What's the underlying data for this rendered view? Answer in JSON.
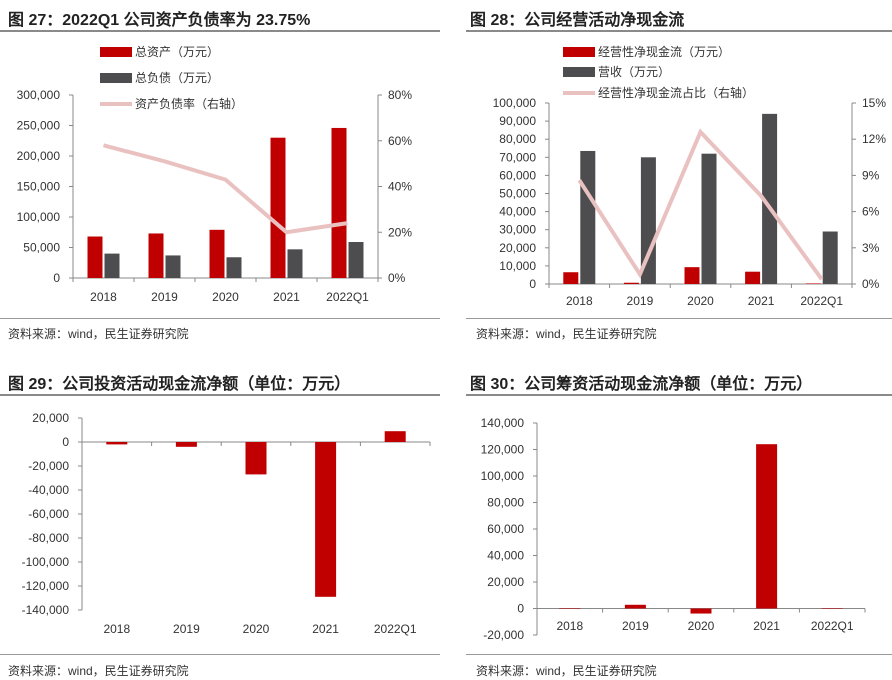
{
  "panels": [
    {
      "title": "图 27：2022Q1 公司资产负债率为 23.75%",
      "source": "资料来源：wind，民生证券研究院"
    },
    {
      "title": "图 28：公司经营活动净现金流",
      "source": "资料来源：wind，民生证券研究院"
    },
    {
      "title": "图 29：公司投资活动现金流净额（单位：万元）",
      "source": "资料来源：wind，民生证券研究院"
    },
    {
      "title": "图 30：公司筹资活动现金流净额（单位：万元）",
      "source": "资料来源：wind，民生证券研究院"
    }
  ],
  "colors": {
    "red": "#c00000",
    "gray": "#4d4d4f",
    "pink": "#eac1c1"
  },
  "chart_data": [
    {
      "type": "bar",
      "categories": [
        "2018",
        "2019",
        "2020",
        "2021",
        "2022Q1"
      ],
      "series": [
        {
          "name": "总资产（万元）",
          "kind": "bar",
          "color": "#c00000",
          "values": [
            68000,
            73000,
            79000,
            230000,
            246000
          ]
        },
        {
          "name": "总负债（万元）",
          "kind": "bar",
          "color": "#4d4d4f",
          "values": [
            40000,
            37000,
            34000,
            47000,
            59000
          ]
        },
        {
          "name": "资产负债率（右轴）",
          "kind": "line",
          "axis": "right",
          "color": "#eac1c1",
          "values": [
            58,
            51,
            43,
            20,
            24
          ]
        }
      ],
      "ylim": [
        0,
        300000
      ],
      "yticks": [
        "0",
        "50,000",
        "100,000",
        "150,000",
        "200,000",
        "250,000",
        "300,000"
      ],
      "y2lim": [
        0,
        80
      ],
      "y2ticks": [
        "0%",
        "20%",
        "40%",
        "60%",
        "80%"
      ],
      "legend": "top-left"
    },
    {
      "type": "bar",
      "categories": [
        "2018",
        "2019",
        "2020",
        "2021",
        "2022Q1"
      ],
      "series": [
        {
          "name": "经营性净现金流（万元）",
          "kind": "bar",
          "color": "#c00000",
          "values": [
            6500,
            700,
            9300,
            6800,
            300
          ]
        },
        {
          "name": "营收（万元）",
          "kind": "bar",
          "color": "#4d4d4f",
          "values": [
            73500,
            70000,
            72000,
            94000,
            29000
          ]
        },
        {
          "name": "经营性净现金流占比（右轴）",
          "kind": "line",
          "axis": "right",
          "color": "#eac1c1",
          "values": [
            8.6,
            0.8,
            12.6,
            7.3,
            0.4
          ]
        }
      ],
      "ylim": [
        0,
        100000
      ],
      "yticks": [
        "0",
        "10,000",
        "20,000",
        "30,000",
        "40,000",
        "50,000",
        "60,000",
        "70,000",
        "80,000",
        "90,000",
        "100,000"
      ],
      "y2lim": [
        0,
        15
      ],
      "y2ticks": [
        "0%",
        "3%",
        "6%",
        "9%",
        "12%",
        "15%"
      ],
      "legend": "top-left"
    },
    {
      "type": "bar",
      "categories": [
        "2018",
        "2019",
        "2020",
        "2021",
        "2022Q1"
      ],
      "series": [
        {
          "name": "投资活动现金流净额",
          "kind": "bar",
          "color": "#c00000",
          "values": [
            -2000,
            -4000,
            -27000,
            -129000,
            9000
          ]
        }
      ],
      "ylim": [
        -140000,
        20000
      ],
      "yticks": [
        "-140,000",
        "-120,000",
        "-100,000",
        "-80,000",
        "-60,000",
        "-40,000",
        "-20,000",
        "0",
        "20,000"
      ]
    },
    {
      "type": "bar",
      "categories": [
        "2018",
        "2019",
        "2020",
        "2021",
        "2022Q1"
      ],
      "series": [
        {
          "name": "筹资活动现金流净额",
          "kind": "bar",
          "color": "#c00000",
          "values": [
            300,
            2800,
            -3800,
            124000,
            0
          ]
        }
      ],
      "ylim": [
        -20000,
        140000
      ],
      "yticks": [
        "-20,000",
        "0",
        "20,000",
        "40,000",
        "60,000",
        "80,000",
        "100,000",
        "120,000",
        "140,000"
      ]
    }
  ]
}
